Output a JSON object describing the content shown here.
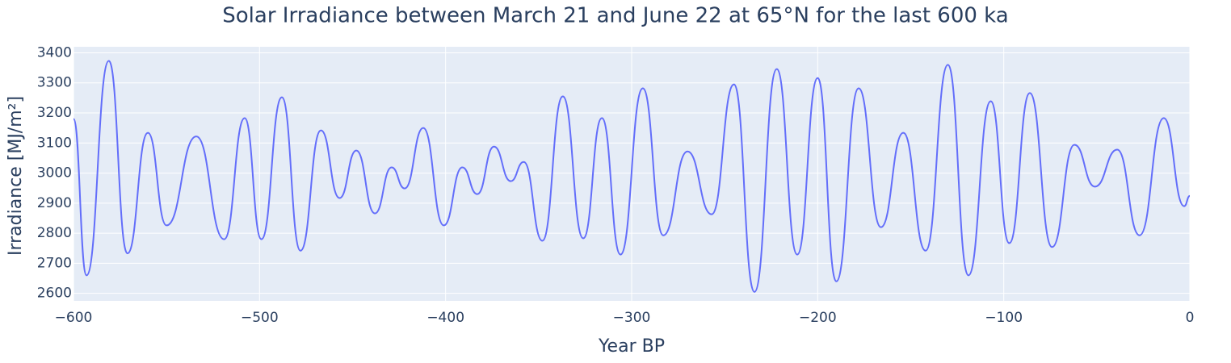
{
  "chart_data": {
    "type": "line",
    "title": "Solar Irradiance between March 21 and June 22 at 65°N for the last 600 ka",
    "x_label": "Year BP",
    "y_label": "Irradiance [MJ/m²]",
    "x": [
      -600,
      -593,
      -581,
      -571,
      -560,
      -550,
      -534,
      -519,
      -508,
      -499,
      -488,
      -478,
      -467,
      -457,
      -448,
      -438,
      -429,
      -422,
      -412,
      -401,
      -391,
      -383,
      -374,
      -365,
      -358,
      -348,
      -337,
      -326,
      -316,
      -306,
      -294,
      -283,
      -270,
      -257,
      -245,
      -234,
      -222,
      -211,
      -200,
      -190,
      -178,
      -166,
      -154,
      -142,
      -130,
      -119,
      -107,
      -97,
      -86,
      -74,
      -62,
      -51,
      -39,
      -27,
      -14,
      -3,
      0
    ],
    "series": [
      {
        "name": "Irradiance",
        "color": "#636efa",
        "values": [
          3180,
          2660,
          3373,
          2733,
          3134,
          2826,
          3122,
          2780,
          3183,
          2780,
          3252,
          2742,
          3142,
          2917,
          3075,
          2866,
          3019,
          2949,
          3150,
          2826,
          3019,
          2930,
          3088,
          2973,
          3037,
          2775,
          3255,
          2783,
          3183,
          2729,
          3282,
          2793,
          3072,
          2863,
          3295,
          2605,
          3346,
          2729,
          3316,
          2640,
          3282,
          2820,
          3134,
          2742,
          3360,
          2660,
          3239,
          2767,
          3266,
          2754,
          3094,
          2955,
          3078,
          2793,
          3183,
          2890,
          2924
        ]
      }
    ],
    "xlim": [
      -600,
      0
    ],
    "xticks": [
      {
        "value": -600,
        "label": "−600"
      },
      {
        "value": -500,
        "label": "−500"
      },
      {
        "value": -400,
        "label": "−400"
      },
      {
        "value": -300,
        "label": "−300"
      },
      {
        "value": -200,
        "label": "−200"
      },
      {
        "value": -100,
        "label": "−100"
      },
      0
    ],
    "ylim": [
      2575,
      3420
    ],
    "yticks": [
      2600,
      2700,
      2800,
      2900,
      3000,
      3100,
      3200,
      3300,
      3400
    ],
    "grid": true
  }
}
